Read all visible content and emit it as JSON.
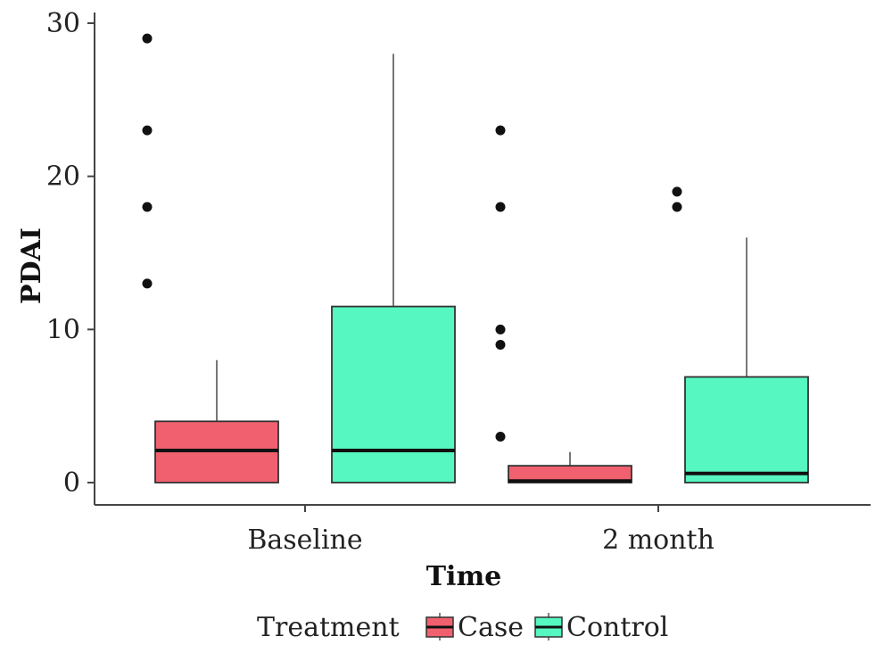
{
  "chart_data": {
    "type": "boxplot",
    "xlabel": "Time",
    "ylabel": "PDAI",
    "categories": [
      "Baseline",
      "2 month"
    ],
    "ylim": [
      0,
      30
    ],
    "yticks": [
      0,
      10,
      20,
      30
    ],
    "grid": false,
    "legend": {
      "title": "Treatment",
      "placement": "bottom",
      "entries": [
        "Case",
        "Control"
      ]
    },
    "series": [
      {
        "name": "Case",
        "color": "#f1606e",
        "boxes": [
          {
            "min": 0,
            "q1": 0,
            "median": 2.1,
            "q3": 4,
            "max": 8,
            "outliers": [
              13,
              18,
              23,
              29
            ]
          },
          {
            "min": 0,
            "q1": 0,
            "median": 0.1,
            "q3": 1.1,
            "max": 2,
            "outliers": [
              3,
              9,
              10,
              18,
              23
            ]
          }
        ]
      },
      {
        "name": "Control",
        "color": "#56f7c0",
        "boxes": [
          {
            "min": 0,
            "q1": 0,
            "median": 2.1,
            "q3": 11.5,
            "max": 28,
            "outliers": []
          },
          {
            "min": 0,
            "q1": 0,
            "median": 0.6,
            "q3": 6.9,
            "max": 16,
            "outliers": [
              18,
              19
            ]
          }
        ]
      }
    ]
  }
}
